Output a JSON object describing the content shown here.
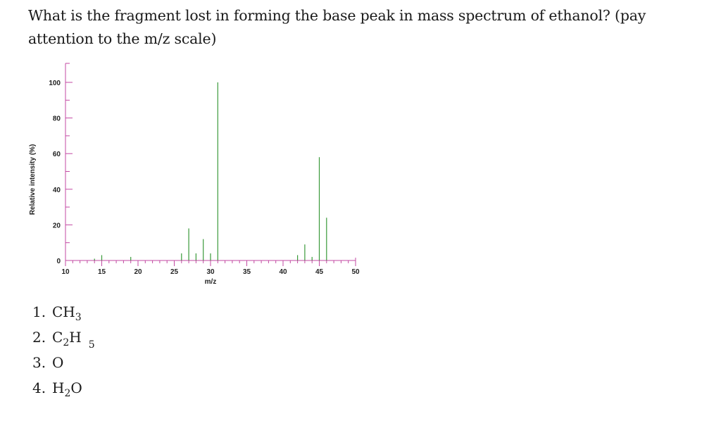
{
  "question": {
    "text": "What is the fragment lost in forming the base peak in mass spectrum of ethanol? (pay attention to the m/z scale)"
  },
  "chart_data": {
    "type": "bar",
    "xlabel": "m/z",
    "ylabel": "Relative intensity (%)",
    "xlim": [
      10,
      50
    ],
    "ylim": [
      0,
      100
    ],
    "x_ticks": [
      10,
      15,
      20,
      25,
      30,
      35,
      40,
      45,
      50
    ],
    "y_ticks": [
      0,
      20,
      40,
      60,
      80,
      100
    ],
    "grid": false,
    "colors": {
      "axis": "#c34aa3",
      "bars": "#3a9a3a",
      "text": "#222222"
    },
    "series": [
      {
        "x": [
          14,
          15,
          19,
          26,
          27,
          28,
          29,
          30,
          31,
          42,
          43,
          44,
          45,
          46
        ],
        "values": [
          1,
          3,
          2,
          4,
          18,
          4,
          12,
          4,
          100,
          3,
          9,
          2,
          58,
          24
        ]
      }
    ]
  },
  "answers": [
    {
      "num": "1.",
      "parts": [
        {
          "t": "CH",
          "s": "3"
        }
      ]
    },
    {
      "num": "2.",
      "parts": [
        {
          "t": "C",
          "s": "2"
        },
        {
          "t": "H",
          "s5": "5"
        }
      ]
    },
    {
      "num": "3.",
      "parts": [
        {
          "t": "O"
        }
      ]
    },
    {
      "num": "4.",
      "parts": [
        {
          "t": "H",
          "s": "2"
        },
        {
          "t": "O"
        }
      ]
    }
  ]
}
